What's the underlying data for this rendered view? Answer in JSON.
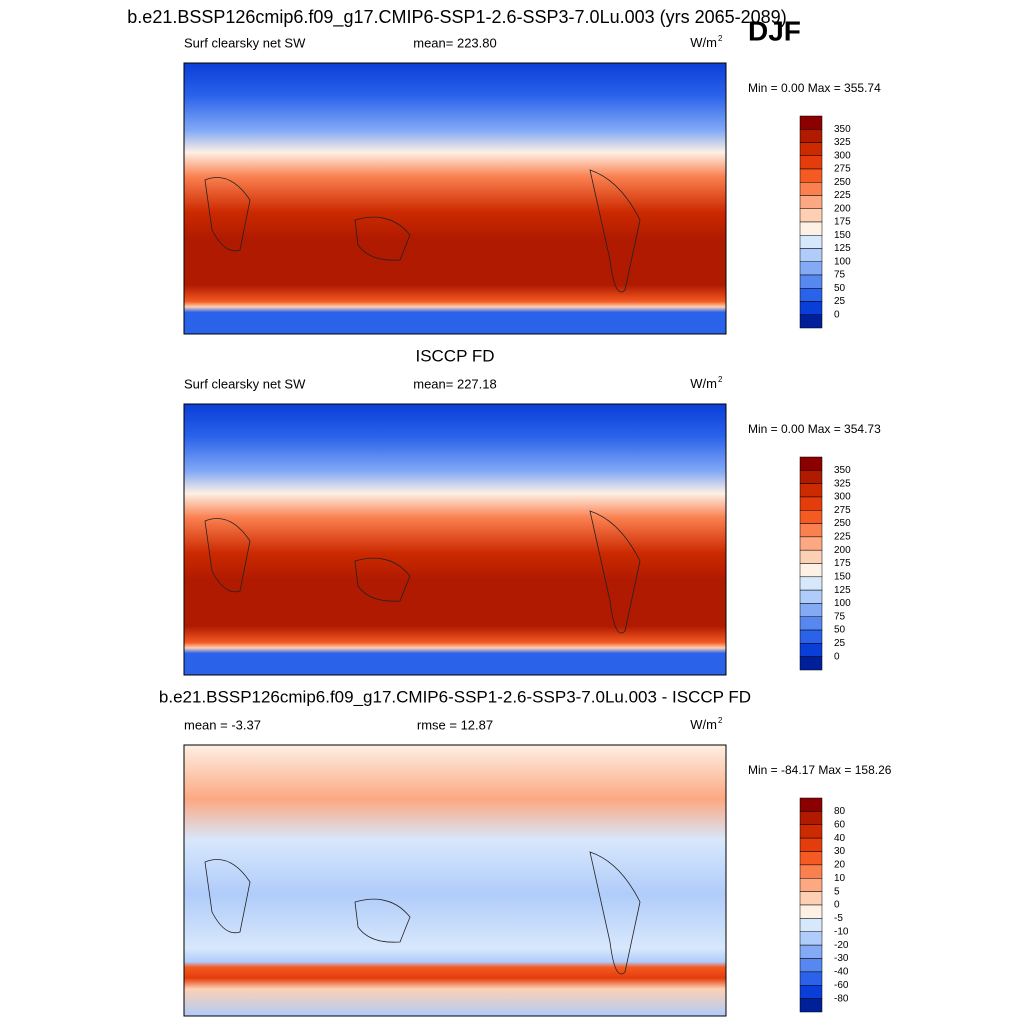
{
  "title": "b.e21.BSSP126cmip6.f09_g17.CMIP6-SSP1-2.6-SSP3-7.0Lu.003 (yrs 2065-2089)",
  "season": "DJF",
  "panels": [
    {
      "left": "Surf clearsky net SW",
      "center": "mean= 223.80",
      "units": "W/m",
      "units_exp": "2",
      "minmax": "Min =   0.00 Max = 355.74",
      "colorbar": {
        "labels": [
          "350",
          "325",
          "300",
          "275",
          "250",
          "225",
          "200",
          "175",
          "150",
          "125",
          "100",
          "75",
          "50",
          "25",
          "0"
        ],
        "colors": [
          "#8b0000",
          "#b01a00",
          "#cc2a00",
          "#e43c0a",
          "#f45a22",
          "#fa8050",
          "#fca882",
          "#fdd0b4",
          "#fdf0e4",
          "#d8e8fc",
          "#b0ccfa",
          "#84aaf6",
          "#5688f0",
          "#2a62ea",
          "#0a3ed8",
          "#00209a"
        ]
      }
    },
    {
      "title": "ISCCP FD",
      "left": "Surf clearsky net SW",
      "center": "mean= 227.18",
      "units": "W/m",
      "units_exp": "2",
      "minmax": "Min =   0.00 Max = 354.73",
      "colorbar": {
        "labels": [
          "350",
          "325",
          "300",
          "275",
          "250",
          "225",
          "200",
          "175",
          "150",
          "125",
          "100",
          "75",
          "50",
          "25",
          "0"
        ],
        "colors": [
          "#8b0000",
          "#b01a00",
          "#cc2a00",
          "#e43c0a",
          "#f45a22",
          "#fa8050",
          "#fca882",
          "#fdd0b4",
          "#fdf0e4",
          "#d8e8fc",
          "#b0ccfa",
          "#84aaf6",
          "#5688f0",
          "#2a62ea",
          "#0a3ed8",
          "#00209a"
        ]
      }
    },
    {
      "title": "b.e21.BSSP126cmip6.f09_g17.CMIP6-SSP1-2.6-SSP3-7.0Lu.003 - ISCCP FD",
      "left": "mean =  -3.37",
      "center": "rmse =  12.87",
      "units": "W/m",
      "units_exp": "2",
      "minmax": "Min = -84.17 Max = 158.26",
      "colorbar": {
        "labels": [
          "80",
          "60",
          "40",
          "30",
          "20",
          "10",
          "5",
          "0",
          "-5",
          "-10",
          "-20",
          "-30",
          "-40",
          "-60",
          "-80"
        ],
        "colors": [
          "#8b0000",
          "#b01a00",
          "#cc2a00",
          "#e43c0a",
          "#f45a22",
          "#fa8050",
          "#fca882",
          "#fdd0b4",
          "#fdf0e4",
          "#d8e8fc",
          "#b0ccfa",
          "#84aaf6",
          "#5688f0",
          "#2a62ea",
          "#0a3ed8",
          "#00209a"
        ]
      }
    }
  ]
}
